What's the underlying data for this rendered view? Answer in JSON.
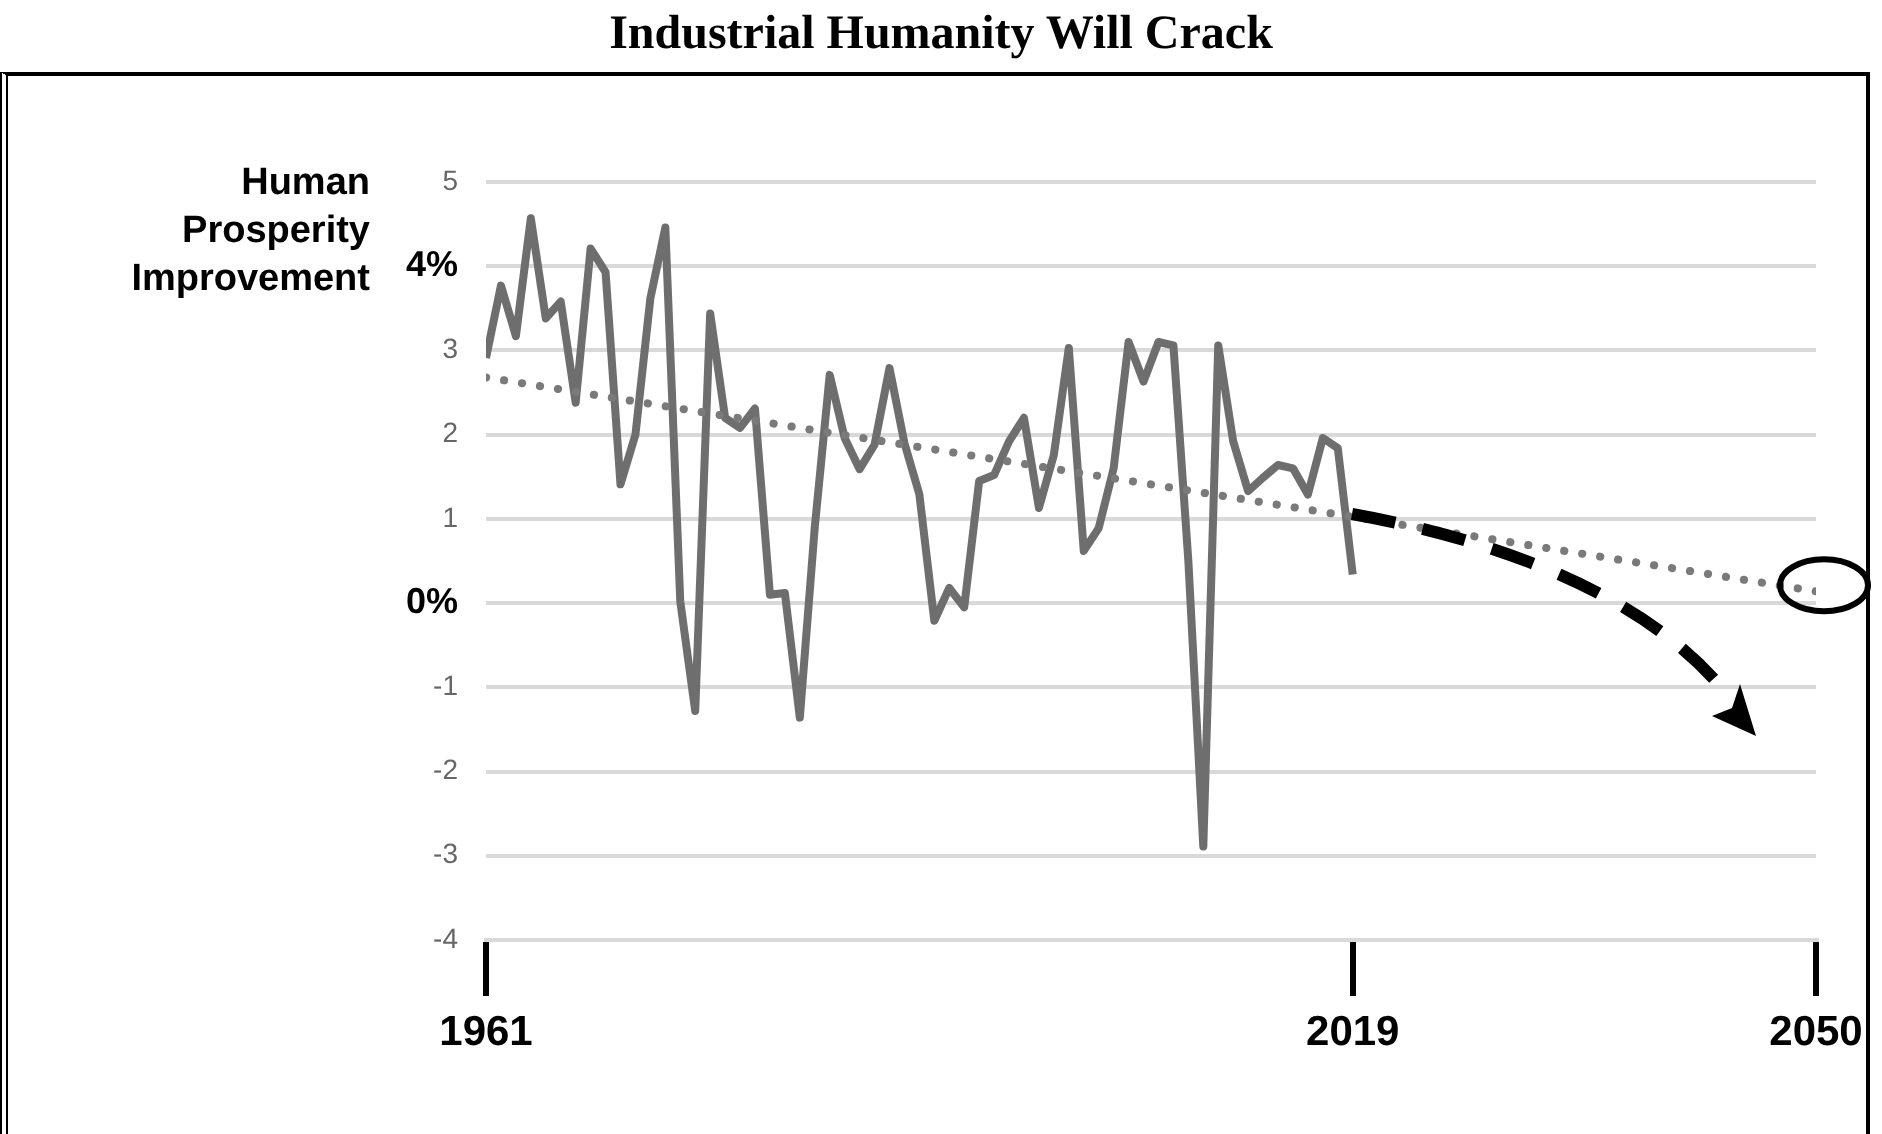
{
  "chart_data": {
    "type": "line",
    "title": "Industrial Humanity Will Crack",
    "ylabel": "Human Prosperity Improvement",
    "x": [
      1961,
      1962,
      1963,
      1964,
      1965,
      1966,
      1967,
      1968,
      1969,
      1970,
      1971,
      1972,
      1973,
      1974,
      1975,
      1976,
      1977,
      1978,
      1979,
      1980,
      1981,
      1982,
      1983,
      1984,
      1985,
      1986,
      1987,
      1988,
      1989,
      1990,
      1991,
      1992,
      1993,
      1994,
      1995,
      1996,
      1997,
      1998,
      1999,
      2000,
      2001,
      2002,
      2003,
      2004,
      2005,
      2006,
      2007,
      2008,
      2009,
      2010,
      2011,
      2012,
      2013,
      2014,
      2015,
      2016,
      2017,
      2018,
      2019
    ],
    "series": [
      {
        "color": "#6e6e6e",
        "line_style": "solid",
        "values": [
          2.91,
          3.77,
          3.17,
          4.57,
          3.38,
          3.58,
          2.38,
          4.21,
          3.93,
          1.41,
          2.0,
          3.62,
          4.46,
          0.02,
          -1.28,
          3.44,
          2.2,
          2.08,
          2.31,
          0.1,
          0.12,
          -1.36,
          0.9,
          2.71,
          1.96,
          1.59,
          1.88,
          2.79,
          1.9,
          1.29,
          -0.21,
          0.18,
          -0.05,
          1.45,
          1.52,
          1.92,
          2.2,
          1.13,
          1.76,
          3.03,
          0.62,
          0.89,
          1.6,
          3.1,
          2.63,
          3.1,
          3.06,
          0.5,
          -2.89,
          3.06,
          1.92,
          1.33,
          1.49,
          1.64,
          1.6,
          1.29,
          1.96,
          1.84,
          0.34
        ]
      },
      {
        "type": "line",
        "color": "#7a7a7a",
        "line_style": "dotted",
        "x": [
          1961,
          2050
        ],
        "values": [
          2.68,
          0.14
        ]
      }
    ],
    "xlim": [
      1961,
      2050
    ],
    "xticks": [
      1961,
      2019,
      2050
    ],
    "ylim": [
      -4,
      5
    ],
    "yticks": [
      -4,
      -3,
      -2,
      -1,
      {
        "value": 0,
        "label": "0%"
      },
      1,
      2,
      3,
      {
        "value": 4,
        "label": "4%"
      },
      5
    ],
    "grid": "y",
    "legend": false,
    "marker": "none"
  }
}
